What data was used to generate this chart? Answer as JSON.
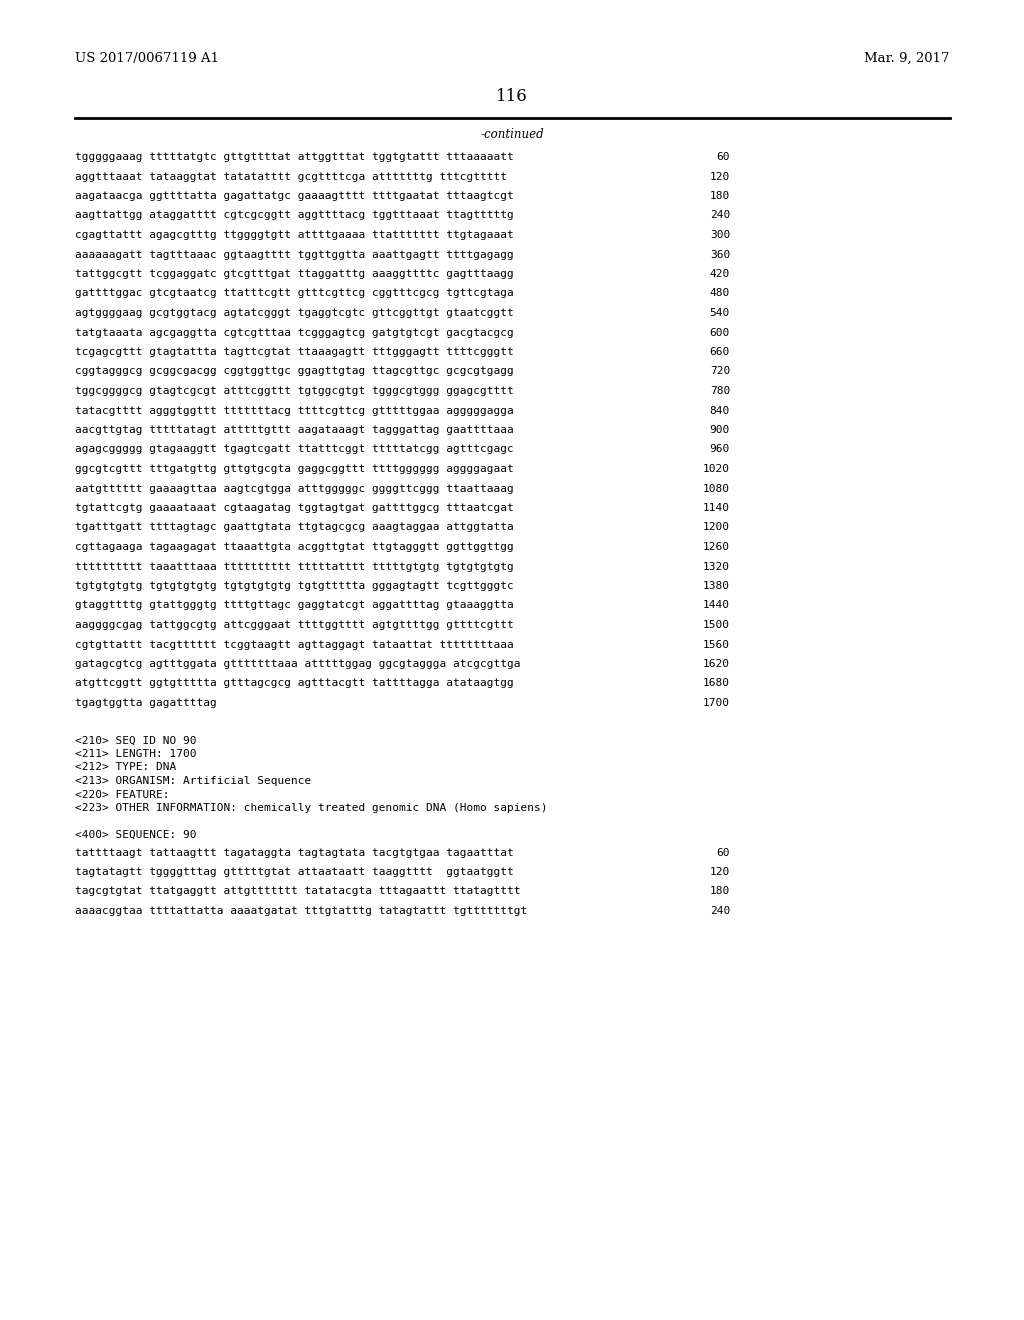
{
  "page_header_left": "US 2017/0067119 A1",
  "page_header_right": "Mar. 9, 2017",
  "page_number": "116",
  "continued_label": "-continued",
  "background_color": "#ffffff",
  "text_color": "#000000",
  "sequence_lines": [
    {
      "seq": "tgggggaaag tttttatgtc gttgttttat attggtttat tggtgtattt tttaaaaatt",
      "num": "60"
    },
    {
      "seq": "aggtttaaat tataaggtat tatatatttt gcgttttcga atttttttg tttcgttttt",
      "num": "120"
    },
    {
      "seq": "aagataacga ggttttatta gagattatgc gaaaagtttt ttttgaatat tttaagtcgt",
      "num": "180"
    },
    {
      "seq": "aagttattgg ataggatttt cgtcgcggtt aggttttacg tggtttaaat ttagtttttg",
      "num": "240"
    },
    {
      "seq": "cgagttattt agagcgtttg ttggggtgtt attttgaaaa ttattttttt ttgtagaaat",
      "num": "300"
    },
    {
      "seq": "aaaaaagatt tagtttaaac ggtaagtttt tggttggtta aaattgagtt ttttgagagg",
      "num": "360"
    },
    {
      "seq": "tattggcgtt tcggaggatc gtcgtttgat ttaggatttg aaaggttttc gagtttaagg",
      "num": "420"
    },
    {
      "seq": "gattttggac gtcgtaatcg ttatttcgtt gtttcgttcg cggtttcgcg tgttcgtaga",
      "num": "480"
    },
    {
      "seq": "agtggggaag gcgtggtacg agtatcgggt tgaggtcgtc gttcggttgt gtaatcggtt",
      "num": "540"
    },
    {
      "seq": "tatgtaaata agcgaggtta cgtcgtttaa tcgggagtcg gatgtgtcgt gacgtacgcg",
      "num": "600"
    },
    {
      "seq": "tcgagcgttt gtagtattta tagttcgtat ttaaagagtt tttgggagtt ttttcgggtt",
      "num": "660"
    },
    {
      "seq": "cggtagggcg gcggcgacgg cggtggttgc ggagttgtag ttagcgttgc gcgcgtgagg",
      "num": "720"
    },
    {
      "seq": "tggcggggcg gtagtcgcgt atttcggttt tgtggcgtgt tgggcgtggg ggagcgtttt",
      "num": "780"
    },
    {
      "seq": "tatacgtttt agggtggttt tttttttacg ttttcgttcg gtttttggaa agggggagga",
      "num": "840"
    },
    {
      "seq": "aacgttgtag tttttatagt atttttgttt aagataaagt tagggattag gaattttaaa",
      "num": "900"
    },
    {
      "seq": "agagcggggg gtagaaggtt tgagtcgatt ttatttcggt tttttatcgg agtttcgagc",
      "num": "960"
    },
    {
      "seq": "ggcgtcgttt tttgatgttg gttgtgcgta gaggcggttt ttttgggggg aggggagaat",
      "num": "1020"
    },
    {
      "seq": "aatgtttttt gaaaagttaa aagtcgtgga atttgggggc ggggttcggg ttaattaaag",
      "num": "1080"
    },
    {
      "seq": "tgtattcgtg gaaaataaat cgtaagatag tggtagtgat gattttggcg tttaatcgat",
      "num": "1140"
    },
    {
      "seq": "tgatttgatt ttttagtagc gaattgtata ttgtagcgcg aaagtaggaa attggtatta",
      "num": "1200"
    },
    {
      "seq": "cgttagaaga tagaagagat ttaaattgta acggttgtat ttgtagggtt ggttggttgg",
      "num": "1260"
    },
    {
      "seq": "tttttttttt taaatttaaa tttttttttt tttttatttt tttttgtgtg tgtgtgtgtg",
      "num": "1320"
    },
    {
      "seq": "tgtgtgtgtg tgtgtgtgtg tgtgtgtgtg tgtgttttta gggagtagtt tcgttgggtc",
      "num": "1380"
    },
    {
      "seq": "gtaggttttg gtattgggtg ttttgttagc gaggtatcgt aggattttag gtaaaggtta",
      "num": "1440"
    },
    {
      "seq": "aaggggcgag tattggcgtg attcgggaat ttttggtttt agtgttttgg gttttcgttt",
      "num": "1500"
    },
    {
      "seq": "cgtgttattt tacgtttttt tcggtaagtt agttaggagt tataattat ttttttttaaa",
      "num": "1560"
    },
    {
      "seq": "gatagcgtcg agtttggata gtttttttaaa atttttggag ggcgtaggga atcgcgttga",
      "num": "1620"
    },
    {
      "seq": "atgttcggtt ggtgttttta gtttagcgcg agtttacgtt tattttagga atataagtgg",
      "num": "1680"
    },
    {
      "seq": "tgagtggtta gagattttag",
      "num": "1700"
    }
  ],
  "metadata_block": [
    "<210> SEQ ID NO 90",
    "<211> LENGTH: 1700",
    "<212> TYPE: DNA",
    "<213> ORGANISM: Artificial Sequence",
    "<220> FEATURE:",
    "<223> OTHER INFORMATION: chemically treated genomic DNA (Homo sapiens)"
  ],
  "seq400_label": "<400> SEQUENCE: 90",
  "seq400_lines": [
    {
      "seq": "tattttaagt tattaagttt tagataggta tagtagtata tacgtgtgaa tagaatttat",
      "num": "60"
    },
    {
      "seq": "tagtatagtt tggggtttag gtttttgtat attaataatt taaggtttt  ggtaatggtt",
      "num": "120"
    },
    {
      "seq": "tagcgtgtat ttatgaggtt attgttttttt tatatacgta tttagaattt ttatagtttt",
      "num": "180"
    },
    {
      "seq": "aaaacggtaa ttttattatta aaaatgatat tttgtatttg tatagtattt tgtttttttgt",
      "num": "240"
    }
  ],
  "font_size_body": 8.0,
  "font_size_header": 9.5,
  "font_size_page_num": 12
}
